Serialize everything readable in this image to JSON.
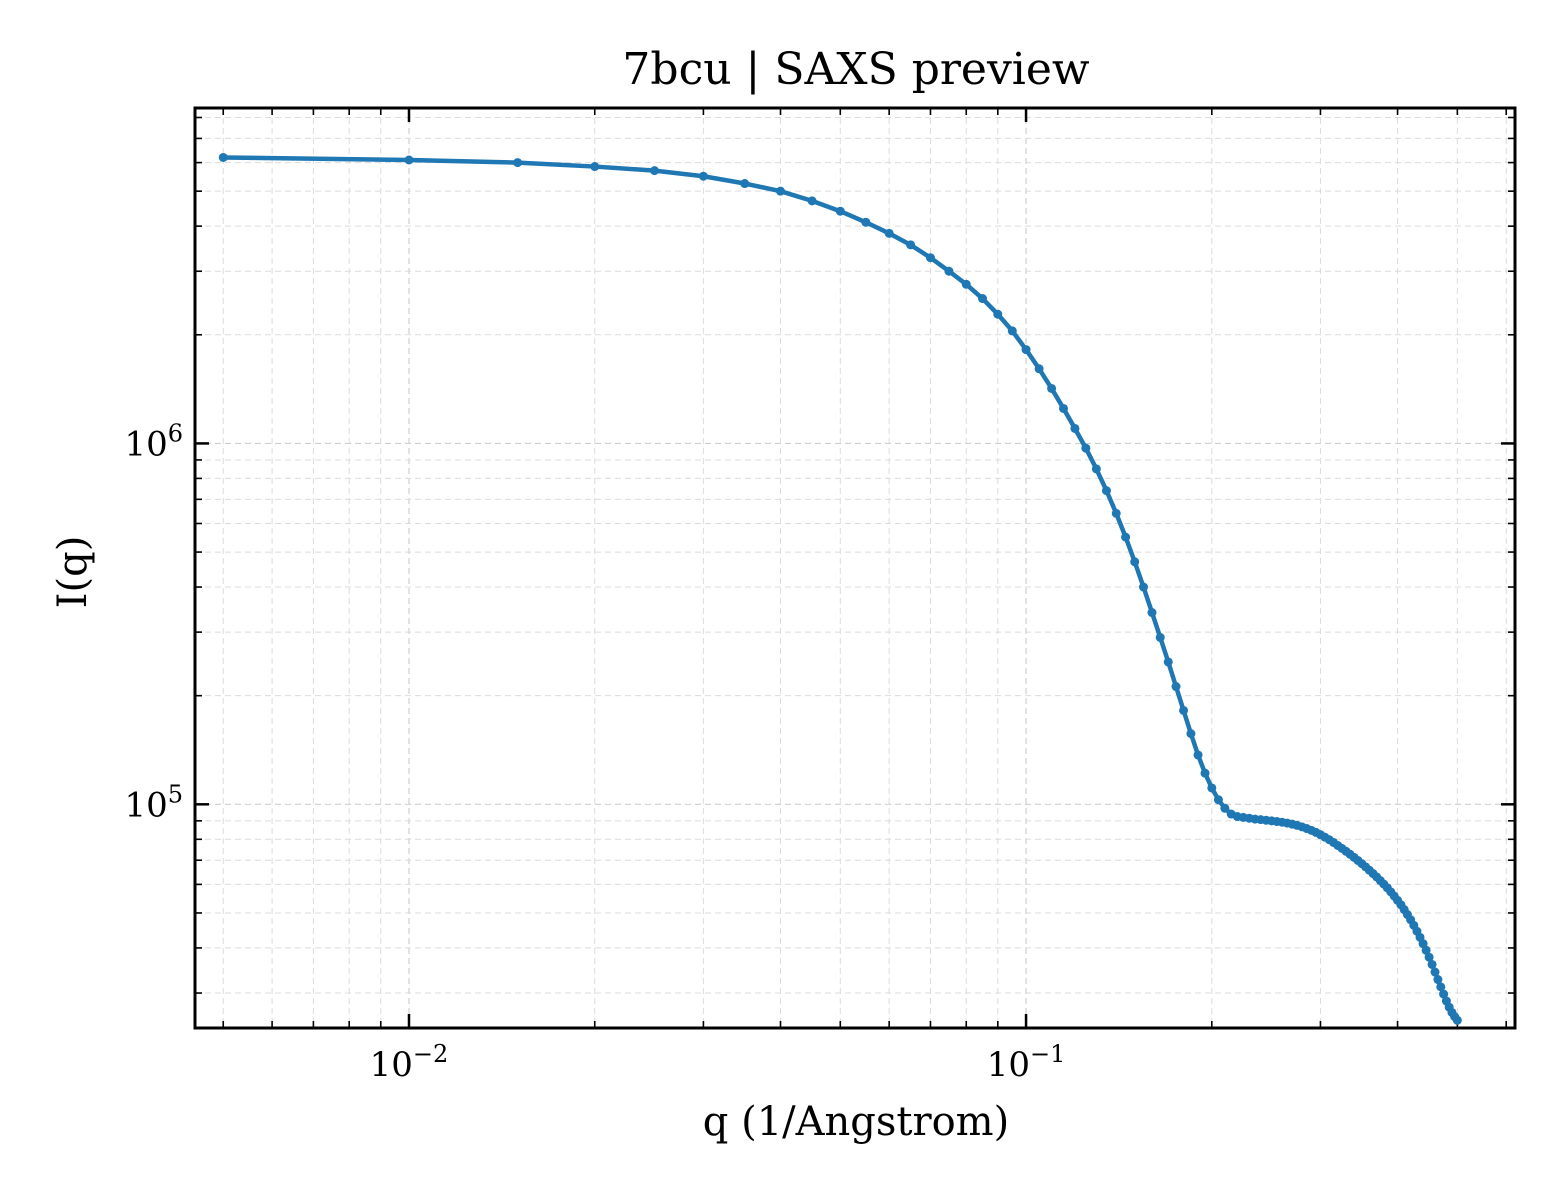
{
  "chart_data": {
    "type": "line",
    "title": "7bcu | SAXS preview",
    "xlabel": "q (1/Angstrom)",
    "ylabel": "I(q)",
    "xscale": "log",
    "yscale": "log",
    "xlim": [
      0.0045,
      0.62
    ],
    "ylim": [
      24000,
      8500000
    ],
    "grid": true,
    "marker": "dot",
    "color": "#1f77b4",
    "xticks": [
      {
        "value": 0.01,
        "base": "10",
        "exp": "−2"
      },
      {
        "value": 0.1,
        "base": "10",
        "exp": "−1"
      }
    ],
    "yticks": [
      {
        "value": 100000,
        "base": "10",
        "exp": "5"
      },
      {
        "value": 1000000,
        "base": "10",
        "exp": "6"
      }
    ],
    "series": [
      {
        "x": [
          0.005,
          0.01,
          0.015,
          0.02,
          0.025,
          0.03,
          0.035,
          0.04,
          0.045,
          0.05,
          0.055,
          0.06,
          0.065,
          0.07,
          0.075,
          0.08,
          0.085,
          0.09,
          0.095,
          0.1,
          0.105,
          0.11,
          0.115,
          0.12,
          0.125,
          0.13,
          0.135,
          0.14,
          0.145,
          0.15,
          0.155,
          0.16,
          0.165,
          0.17,
          0.175,
          0.18,
          0.185,
          0.19,
          0.195,
          0.2,
          0.205,
          0.21,
          0.215,
          0.22,
          0.225,
          0.23,
          0.235,
          0.24,
          0.245,
          0.25,
          0.255,
          0.26,
          0.265,
          0.27,
          0.275,
          0.28,
          0.285,
          0.29,
          0.295,
          0.3,
          0.305,
          0.31,
          0.315,
          0.32,
          0.325,
          0.33,
          0.335,
          0.34,
          0.345,
          0.35,
          0.355,
          0.36,
          0.365,
          0.37,
          0.375,
          0.38,
          0.385,
          0.39,
          0.395,
          0.4,
          0.405,
          0.41,
          0.415,
          0.42,
          0.425,
          0.43,
          0.435,
          0.44,
          0.445,
          0.45,
          0.455,
          0.46,
          0.465,
          0.47,
          0.475,
          0.48,
          0.485,
          0.49,
          0.495,
          0.5
        ],
        "y": [
          6200000,
          6100000,
          6000000,
          5850000,
          5700000,
          5500000,
          5250000,
          5000000,
          4700000,
          4400000,
          4100000,
          3820000,
          3550000,
          3270000,
          3000000,
          2760000,
          2520000,
          2280000,
          2050000,
          1820000,
          1610000,
          1420000,
          1250000,
          1100000,
          970000,
          850000,
          740000,
          640000,
          550000,
          470000,
          400000,
          340000,
          290000,
          248000,
          212000,
          182000,
          157000,
          137000,
          122000,
          111000,
          103000,
          97500,
          94000,
          92500,
          92000,
          91500,
          91000,
          90700,
          90300,
          90000,
          89600,
          89200,
          88700,
          88100,
          87400,
          86600,
          85700,
          84700,
          83600,
          82400,
          81100,
          79800,
          78400,
          76900,
          75500,
          74100,
          72700,
          71300,
          69900,
          68500,
          67100,
          65700,
          64300,
          62900,
          61500,
          60100,
          58700,
          57200,
          55700,
          54200,
          52700,
          51100,
          49500,
          47900,
          46200,
          44500,
          42800,
          41100,
          39400,
          37700,
          36000,
          34300,
          32700,
          31200,
          29800,
          28500,
          27400,
          26500,
          25800,
          25200
        ]
      }
    ]
  }
}
